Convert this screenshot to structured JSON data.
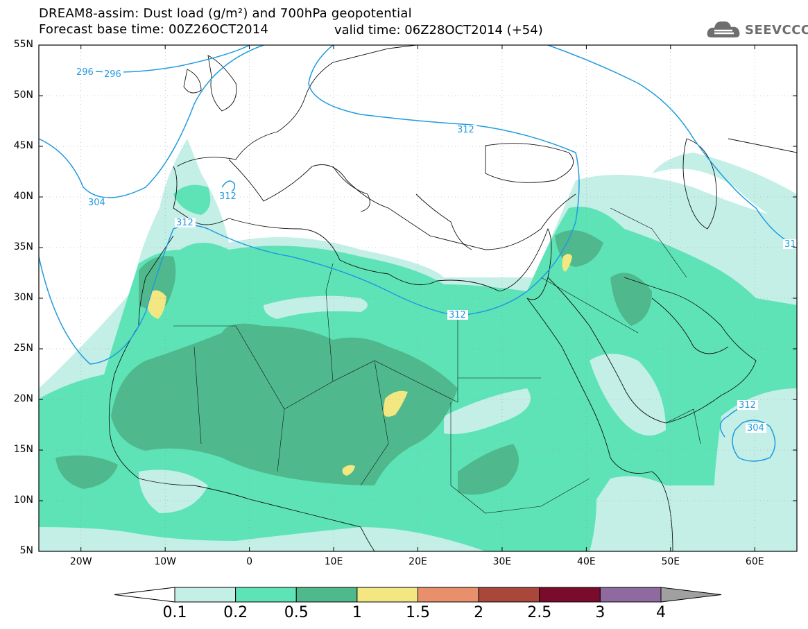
{
  "header": {
    "title_line1": "DREAM8-assim: Dust load (g/m²) and 700hPa geopotential",
    "title_line2": "Forecast base time: 00Z26OCT2014",
    "valid_time": "valid time: 06Z28OCT2014 (+54)",
    "logo_text": "SEEVCCC",
    "logo_icon": "cloud-icon"
  },
  "axes": {
    "lat_labels": [
      "55N",
      "50N",
      "45N",
      "40N",
      "35N",
      "30N",
      "25N",
      "20N",
      "15N",
      "10N",
      "5N"
    ],
    "lon_labels": [
      "20W",
      "10W",
      "0",
      "10E",
      "20E",
      "30E",
      "40E",
      "50E",
      "60E"
    ],
    "lat_range": [
      5,
      55
    ],
    "lon_range": [
      -25,
      65
    ]
  },
  "contours": {
    "labels": [
      "296",
      "296",
      "304",
      "312",
      "312",
      "312",
      "312",
      "312",
      "304",
      "31"
    ],
    "color": "#1f9ae0"
  },
  "colorbar": {
    "ticks": [
      "0.1",
      "0.2",
      "0.5",
      "1",
      "1.5",
      "2",
      "2.5",
      "3",
      "4"
    ],
    "colors": [
      "#ffffff",
      "#c3efe7",
      "#5ee3b7",
      "#4fb98d",
      "#f3e782",
      "#e8906c",
      "#a9483a",
      "#790b2c",
      "#8e6a9e",
      "#a0a0a0"
    ]
  },
  "dust_colors": {
    "c01": "#c3efe7",
    "c02": "#5ee3b7",
    "c05": "#4fb98d",
    "c10": "#f3e782"
  }
}
